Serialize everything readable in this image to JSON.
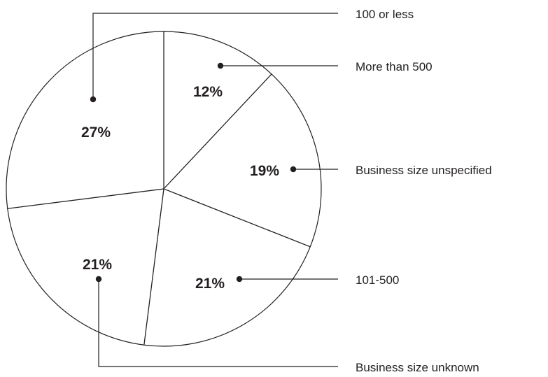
{
  "chart_data": {
    "type": "pie",
    "title": "",
    "slices": [
      {
        "label": "More than 500",
        "value": 12,
        "value_label": "12%"
      },
      {
        "label": "Business size unspecified",
        "value": 19,
        "value_label": "19%"
      },
      {
        "label": "101-500",
        "value": 21,
        "value_label": "21%"
      },
      {
        "label": "Business size unknown",
        "value": 21,
        "value_label": "21%"
      },
      {
        "label": "100 or less",
        "value": 27,
        "value_label": "27%"
      }
    ],
    "start_angle_deg": 0,
    "direction": "clockwise",
    "legend": "callout-lines-right"
  }
}
